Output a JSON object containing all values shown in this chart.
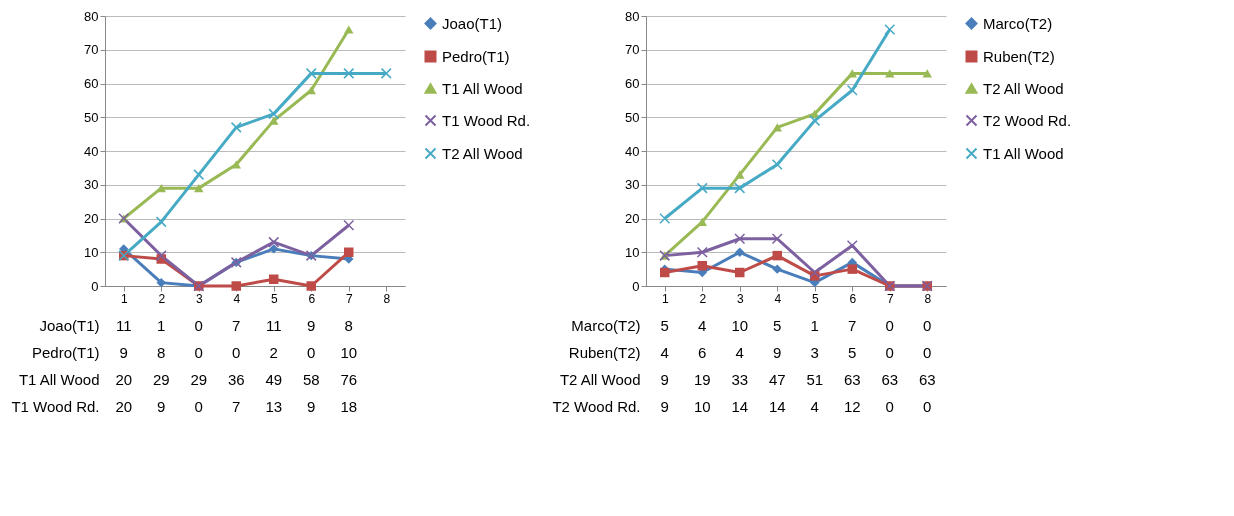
{
  "chart_data": [
    {
      "type": "line",
      "categories": [
        "1",
        "2",
        "3",
        "4",
        "5",
        "6",
        "7",
        "8"
      ],
      "ylim": [
        0,
        80
      ],
      "yticks": [
        0,
        10,
        20,
        30,
        40,
        50,
        60,
        70,
        80
      ],
      "grid": "y",
      "legend": "right",
      "series": [
        {
          "name": "Joao(T1)",
          "color": "#4a7ebb",
          "marker": "diamond",
          "values": [
            11,
            1,
            0,
            7,
            11,
            9,
            8,
            null
          ],
          "value_labels": [
            "11",
            "1",
            "0",
            "7",
            "11",
            "9",
            "8",
            null
          ]
        },
        {
          "name": "Pedro(T1)",
          "color": "#be4b48",
          "marker": "square",
          "values": [
            9,
            8,
            0,
            0,
            2,
            0,
            10,
            null
          ],
          "value_labels": [
            "9",
            "8",
            "0",
            "0",
            "2",
            "0",
            "10",
            null
          ]
        },
        {
          "name": "T1 All Wood",
          "color": "#98b954",
          "marker": "triangle",
          "values": [
            20,
            29,
            29,
            36,
            49,
            58,
            76,
            null
          ],
          "value_labels": [
            "20",
            "29",
            "29",
            "36",
            "49",
            "58",
            "76",
            null
          ]
        },
        {
          "name": "T1 Wood Rd.",
          "color": "#7d60a0",
          "marker": "cross",
          "values": [
            20,
            9,
            0,
            7,
            13,
            9,
            18,
            null
          ],
          "value_labels": [
            "20",
            "9",
            "0",
            "7",
            "13",
            "9",
            "18",
            null
          ]
        },
        {
          "name": "T2 All Wood",
          "color": "#46aac5",
          "marker": "cross",
          "values": [
            9,
            19,
            33,
            47,
            51,
            63,
            63,
            63
          ]
        }
      ]
    },
    {
      "type": "line",
      "categories": [
        "1",
        "2",
        "3",
        "4",
        "5",
        "6",
        "7",
        "8"
      ],
      "ylim": [
        0,
        80
      ],
      "yticks": [
        0,
        10,
        20,
        30,
        40,
        50,
        60,
        70,
        80
      ],
      "grid": "y",
      "legend": "right",
      "series": [
        {
          "name": "Marco(T2)",
          "color": "#4a7ebb",
          "marker": "diamond",
          "values": [
            5,
            4,
            10,
            5,
            1,
            7,
            0,
            0
          ],
          "value_labels": [
            "5",
            "4",
            "10",
            "5",
            "1",
            "7",
            "0",
            "0"
          ]
        },
        {
          "name": "Ruben(T2)",
          "color": "#be4b48",
          "marker": "square",
          "values": [
            4,
            6,
            4,
            9,
            3,
            5,
            0,
            0
          ],
          "value_labels": [
            "4",
            "6",
            "4",
            "9",
            "3",
            "5",
            "0",
            "0"
          ]
        },
        {
          "name": "T2 All Wood",
          "color": "#98b954",
          "marker": "triangle",
          "values": [
            9,
            19,
            33,
            47,
            51,
            63,
            63,
            63
          ],
          "value_labels": [
            "9",
            "19",
            "33",
            "47",
            "51",
            "63",
            "63",
            "63"
          ]
        },
        {
          "name": "T2 Wood Rd.",
          "color": "#7d60a0",
          "marker": "cross",
          "values": [
            9,
            10,
            14,
            14,
            4,
            12,
            0,
            0
          ],
          "value_labels": [
            "9",
            "10",
            "14",
            "14",
            "4",
            "12",
            "0",
            "0"
          ]
        },
        {
          "name": "T1 All Wood",
          "color": "#46aac5",
          "marker": "cross",
          "values": [
            20,
            29,
            29,
            36,
            49,
            58,
            76,
            null
          ]
        }
      ]
    }
  ]
}
